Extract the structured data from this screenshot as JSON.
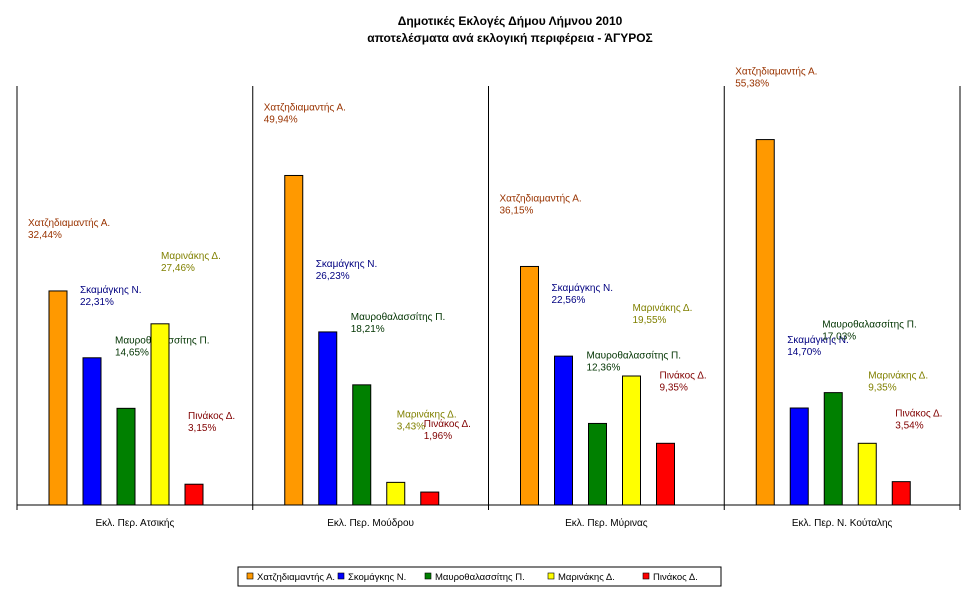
{
  "chart_data": {
    "type": "bar",
    "title": "Δημοτικές Εκλογές Δήμου Λήμνου 2010",
    "subtitle": "αποτελέσματα ανά εκλογική περιφέρεια - ΆΓΥΡΟΣ",
    "xlabel": "",
    "ylabel": "",
    "ylim": [
      0,
      63.5
    ],
    "grid": false,
    "legend_position": "bottom",
    "categories": [
      "Εκλ. Περ. Ατσικής",
      "Εκλ. Περ. Μούδρου",
      "Εκλ. Περ. Μύρινας",
      "Εκλ. Περ. Ν. Κούταλης"
    ],
    "series": [
      {
        "name": "Χατζηδιαμαντής Α.",
        "legend": "Χατζηδιαμαντής Α.",
        "color": "#FF9900",
        "label_color": "#993300",
        "values": [
          32.44,
          49.94,
          36.15,
          55.38
        ],
        "labels": [
          "32,44%",
          "49,94%",
          "36,15%",
          "55,38%"
        ]
      },
      {
        "name": "Σκαμάγκης Ν.",
        "legend": "Σκομάγκης Ν.",
        "color": "#0000FF",
        "label_color": "#000080",
        "values": [
          22.31,
          26.23,
          22.56,
          14.7
        ],
        "labels": [
          "22,31%",
          "26,23%",
          "22,56%",
          "14,70%"
        ]
      },
      {
        "name": "Μαυροθαλασσίτης Π.",
        "legend": "Μαυροθαλασσίτης Π.",
        "color": "#008000",
        "label_color": "#003300",
        "values": [
          14.65,
          18.21,
          12.36,
          17.03
        ],
        "labels": [
          "14,65%",
          "18,21%",
          "12,36%",
          "17,03%"
        ]
      },
      {
        "name": "Μαρινάκης Δ.",
        "legend": "Μαρινάκης Δ.",
        "color": "#FFFF00",
        "label_color": "#808000",
        "values": [
          27.46,
          3.43,
          19.55,
          9.35
        ],
        "labels": [
          "27,46%",
          "3,43%",
          "19,55%",
          "9,35%"
        ]
      },
      {
        "name": "Πινάκος Δ.",
        "legend": "Πινάκος Δ.",
        "color": "#FF0000",
        "label_color": "#800000",
        "values": [
          3.15,
          1.96,
          9.35,
          3.54
        ],
        "labels": [
          "3,15%",
          "1,96%",
          "9,35%",
          "3,54%"
        ]
      }
    ]
  }
}
